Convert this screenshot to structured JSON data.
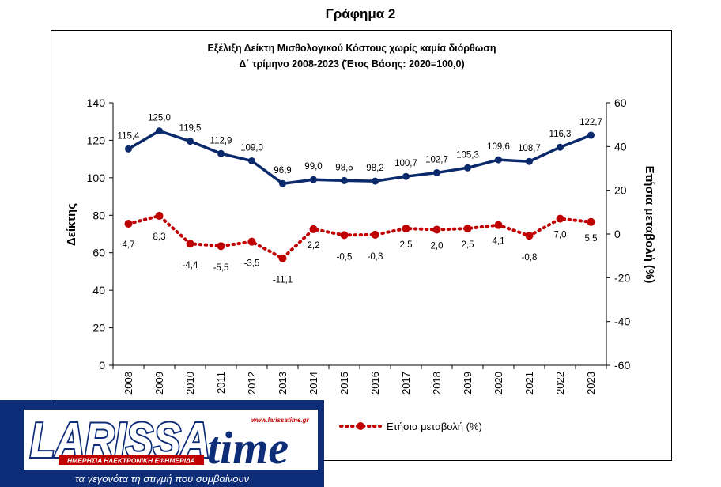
{
  "page_title": "Γράφημα 2",
  "chart_data": {
    "type": "line",
    "title_line1": "Εξέλιξη  Δείκτη Μισθολογικού Κόστους χωρίς  καμία  διόρθωση",
    "title_line2": "Δ΄ τρίμηνο 2008-2023 (Έτος Βάσης: 2020=100,0)",
    "categories": [
      "2008",
      "2009",
      "2010",
      "2011",
      "2012",
      "2013",
      "2014",
      "2015",
      "2016",
      "2017",
      "2018",
      "2019",
      "2020",
      "2021",
      "2022",
      "2023"
    ],
    "ylabel": "Δείκτης",
    "y2label": "Ετήσια μεταβολή (%)",
    "ylim": [
      0,
      140
    ],
    "y2lim": [
      -60,
      60
    ],
    "yticks": [
      0,
      20,
      40,
      60,
      80,
      100,
      120,
      140
    ],
    "y2ticks": [
      -60,
      -40,
      -20,
      0,
      20,
      40,
      60
    ],
    "grid": false,
    "series": [
      {
        "axis": "left",
        "color": "#0b2a6b",
        "style": "solid",
        "values": [
          115.4,
          125.0,
          119.5,
          112.9,
          109.0,
          96.9,
          99.0,
          98.5,
          98.2,
          100.7,
          102.7,
          105.3,
          109.6,
          108.7,
          116.3,
          122.7
        ],
        "labels": [
          "115,4",
          "125,0",
          "119,5",
          "112,9",
          "109,0",
          "96,9",
          "99,0",
          "98,5",
          "98,2",
          "100,7",
          "102,7",
          "105,3",
          "109,6",
          "108,7",
          "116,3",
          "122,7"
        ]
      },
      {
        "name": "Ετήσια μεταβολή (%)",
        "axis": "right",
        "color": "#c00000",
        "style": "dotted",
        "values": [
          4.7,
          8.3,
          -4.4,
          -5.5,
          -3.5,
          -11.1,
          2.2,
          -0.5,
          -0.3,
          2.5,
          2.0,
          2.5,
          4.1,
          -0.8,
          7.0,
          5.5
        ],
        "labels": [
          "4,7",
          "8,3",
          "-4,4",
          "-5,5",
          "-3,5",
          "-11,1",
          "2,2",
          "-0,5",
          "-0,3",
          "2,5",
          "2,0",
          "2,5",
          "4,1",
          "-0,8",
          "7,0",
          "5,5"
        ]
      }
    ],
    "legend_position": "bottom"
  },
  "logo": {
    "name_part1": "LARISSA",
    "name_part2": "time",
    "url": "www.larissatime.gr",
    "subtitle": "ΗΜΕΡΗΣΙΑ ΗΛΕΚΤΡΟΝΙΚΗ ΕΦΗΜΕΡΙΔΑ",
    "slogan": "τα γεγονότα τη στιγμή που συμβαίνουν"
  }
}
